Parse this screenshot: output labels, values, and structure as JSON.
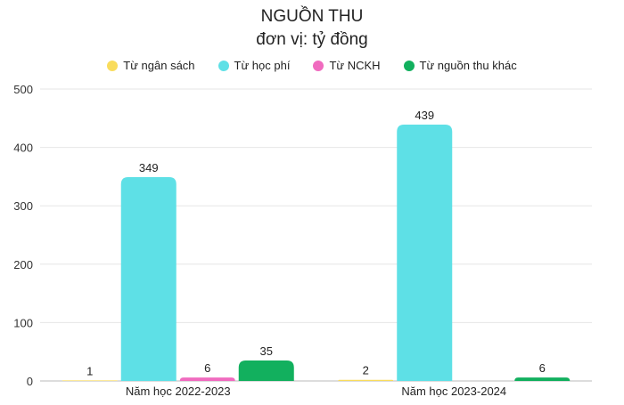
{
  "chart_data": {
    "type": "bar",
    "title": "NGUỒN THU",
    "subtitle": "đơn vị: tỷ đồng",
    "categories": [
      "Năm học 2022-2023",
      "Năm học 2023-2024"
    ],
    "series": [
      {
        "name": "Từ ngân sách",
        "values": [
          1,
          2
        ],
        "color": "#f9dc5c"
      },
      {
        "name": "Từ học phí",
        "values": [
          349,
          439
        ],
        "color": "#5ee0e6"
      },
      {
        "name": "Từ NCKH",
        "values": [
          6,
          0
        ],
        "color": "#f06bbf"
      },
      {
        "name": "Từ nguồn thu khác",
        "values": [
          35,
          6
        ],
        "color": "#12b05e"
      }
    ],
    "value_labels": [
      [
        "1",
        "2"
      ],
      [
        "349",
        "439"
      ],
      [
        "6",
        ""
      ],
      [
        "35",
        "6"
      ]
    ],
    "y_ticks": [
      0,
      100,
      200,
      300,
      400,
      500
    ],
    "ylim": [
      0,
      500
    ],
    "grid": true,
    "legend_position": "top-center"
  }
}
